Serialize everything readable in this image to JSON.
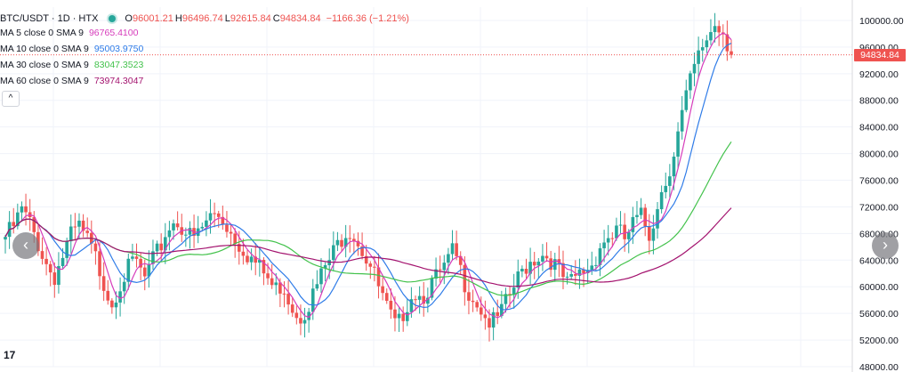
{
  "header": {
    "symbol": "BTC/USDT · 1D · HTX",
    "open_key": "O",
    "open": "96001.21",
    "high_key": "H",
    "high": "96496.74",
    "low_key": "L",
    "low": "92615.84",
    "close_key": "C",
    "close": "94834.84",
    "change": "−1166.36 (−1.21%)"
  },
  "indicators": [
    {
      "label": "MA 5 close 0 SMA 9",
      "value": "96765.4100",
      "color": "#d63cbb"
    },
    {
      "label": "MA 10 close 0 SMA 9",
      "value": "95003.9750",
      "color": "#2f7ce8"
    },
    {
      "label": "MA 30 close 0 SMA 9",
      "value": "83047.3523",
      "color": "#43c24c"
    },
    {
      "label": "MA 60 close 0 SMA 9",
      "value": "73974.3047",
      "color": "#a3126e"
    }
  ],
  "collapse_icon": "^",
  "last_price_label": "94834.84",
  "nav": {
    "left_icon": "‹",
    "right_icon": "›"
  },
  "logo_text": "17",
  "colors": {
    "up": "#26a69a",
    "down": "#ef5350",
    "grid": "#f0f3fa",
    "axis_text": "#131722"
  },
  "chart_data": {
    "type": "candlestick",
    "ylim": [
      48000,
      102000
    ],
    "y_ticks": [
      "100000.00",
      "96000.00",
      "92000.00",
      "88000.00",
      "84000.00",
      "80000.00",
      "76000.00",
      "72000.00",
      "68000.00",
      "64000.00",
      "60000.00",
      "56000.00",
      "52000.00",
      "48000.00"
    ],
    "close_path": [
      67500,
      69000,
      71500,
      69500,
      66500,
      63500,
      61500,
      64500,
      67500,
      69000,
      67000,
      64500,
      61000,
      57500,
      60500,
      62500,
      64000,
      61000,
      63500,
      66000,
      69000,
      70000,
      68500,
      67000,
      68500,
      70500,
      71000,
      69500,
      67500,
      66000,
      64500,
      63000,
      61500,
      59500,
      60500,
      57500,
      55500,
      57000,
      59500,
      62500,
      64500,
      67000,
      69000,
      67500,
      65000,
      62500,
      59000,
      56000,
      53500,
      57000,
      59500,
      58500,
      60000,
      61500,
      63000,
      65500,
      61500,
      59000,
      57500,
      55000,
      54500,
      56500,
      59000,
      61500,
      63500,
      64500,
      65000,
      64000,
      62000,
      60000,
      61500,
      62500,
      63500,
      66500,
      67500,
      68500,
      67000,
      69500,
      70500,
      67500,
      73000,
      76000,
      80500,
      86000,
      91000,
      94500,
      97500,
      99500,
      98500,
      94834.84
    ],
    "series": [
      {
        "name": "MA 5",
        "period": 5,
        "color": "#d63cbb"
      },
      {
        "name": "MA 10",
        "period": 10,
        "color": "#2f7ce8"
      },
      {
        "name": "MA 30",
        "period": 30,
        "color": "#43c24c"
      },
      {
        "name": "MA 60",
        "period": 60,
        "color": "#a3126e"
      }
    ],
    "last_price": 94834.84
  }
}
